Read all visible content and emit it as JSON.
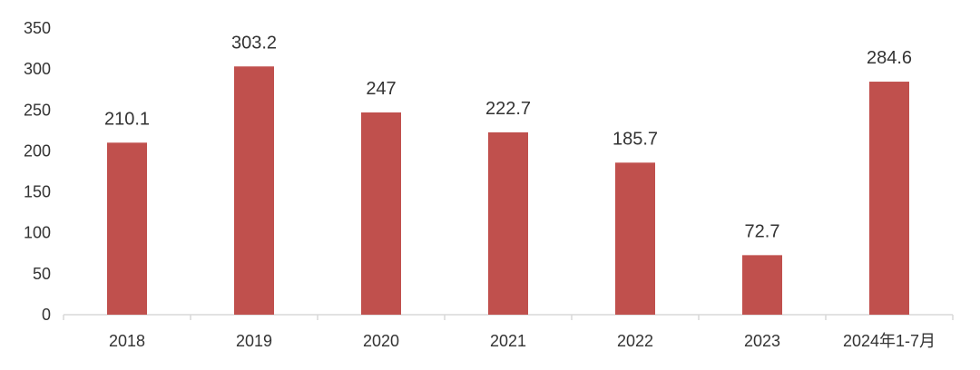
{
  "chart_data": {
    "type": "bar",
    "categories": [
      "2018",
      "2019",
      "2020",
      "2021",
      "2022",
      "2023",
      "2024年1-7月"
    ],
    "values": [
      210.1,
      303.2,
      247,
      222.7,
      185.7,
      72.7,
      284.6
    ],
    "data_labels": [
      "210.1",
      "303.2",
      "247",
      "222.7",
      "185.7",
      "72.7",
      "284.6"
    ],
    "title": "",
    "xlabel": "",
    "ylabel": "",
    "ylim": [
      0,
      350
    ],
    "yticks": [
      0,
      50,
      100,
      150,
      200,
      250,
      300,
      350
    ],
    "grid": false,
    "legend": "none",
    "bar_color": "#c0504d",
    "axis_color": "#d9d9d9"
  }
}
